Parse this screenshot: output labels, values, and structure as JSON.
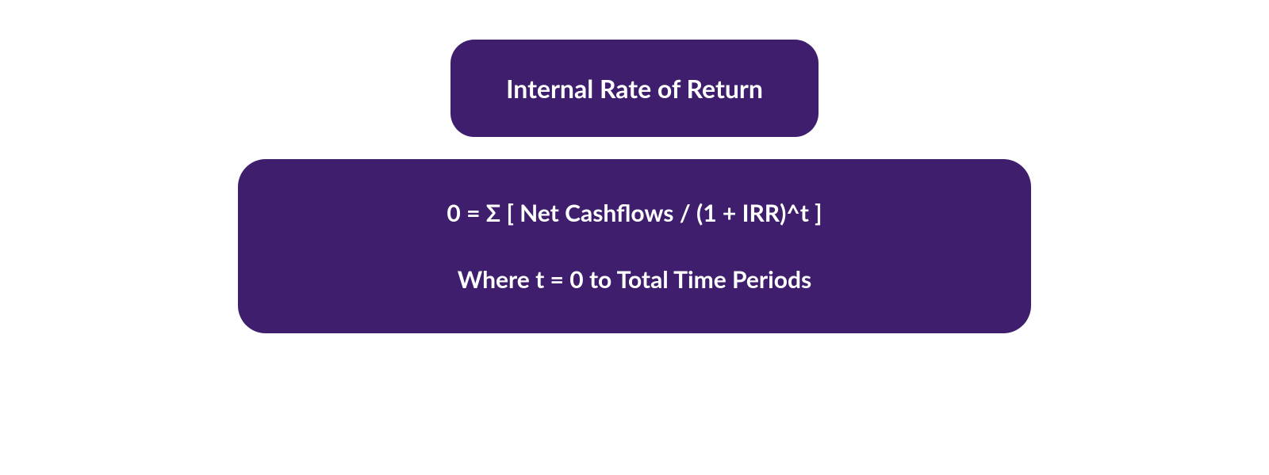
{
  "diagram": {
    "type": "infographic",
    "title": "Internal Rate of Return",
    "formula": "0 = Σ [ Net Cashflows / (1 + IRR)^t ]",
    "where": "Where t = 0 to Total Time Periods",
    "colors": {
      "box_background": "#3f1e6e",
      "text_color": "#ffffff",
      "page_background": "#ffffff"
    },
    "typography": {
      "title_fontsize": 32,
      "formula_fontsize": 30,
      "where_fontsize": 30,
      "font_weight": 700
    },
    "layout": {
      "title_box_width": 620,
      "formula_box_width": 1000,
      "border_radius_title": 30,
      "border_radius_formula": 35,
      "gap_between_boxes": 28
    }
  }
}
